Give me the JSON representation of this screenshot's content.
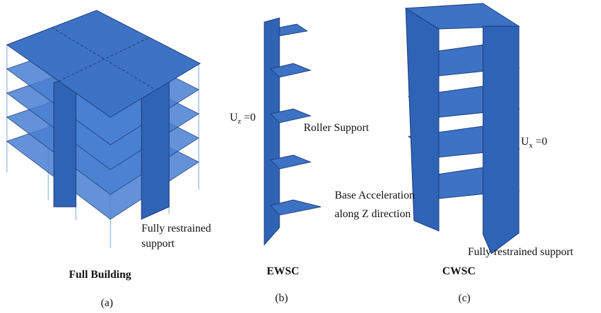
{
  "panels": [
    {
      "title": "Full Building",
      "label": "(a)",
      "annotations": [
        {
          "lines": [
            "Fully restrained",
            "support"
          ]
        }
      ]
    },
    {
      "title": "EWSC",
      "label": "(b)",
      "annotations": [
        {
          "symbol": "U",
          "subscript": "z",
          "rest": " =0"
        },
        {
          "lines": [
            "Roller Support"
          ]
        }
      ]
    },
    {
      "title": "CWSC",
      "label": "(c)",
      "annotations": [
        {
          "symbol": "U",
          "subscript": "x",
          "rest": " =0"
        },
        {
          "lines": [
            "Base Acceleration",
            "along Z direction"
          ]
        },
        {
          "lines": [
            "Fully restrained  support"
          ]
        }
      ]
    }
  ]
}
